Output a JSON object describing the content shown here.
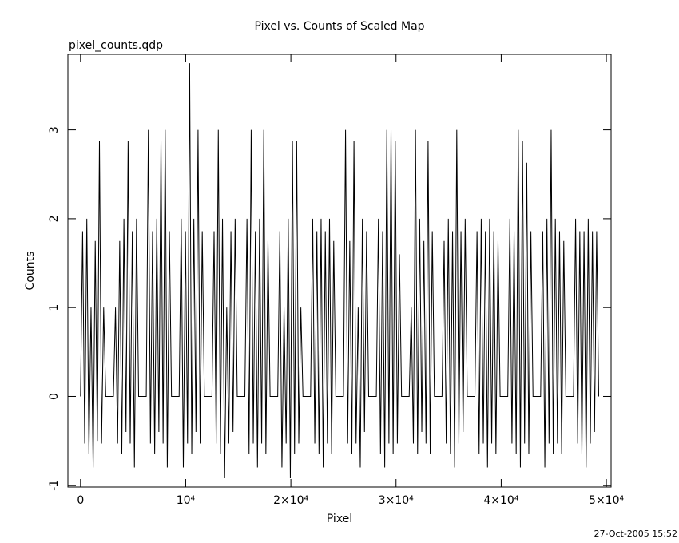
{
  "chart_data": {
    "type": "line",
    "title": "Pixel vs. Counts of Scaled Map",
    "subtitle": "pixel_counts.qdp",
    "x_label": "Pixel",
    "y_label": "Counts",
    "timestamp": "27-Oct-2005 15:52",
    "color": "#000000",
    "xlim": [
      -1200,
      50450
    ],
    "ylim": [
      -1.02,
      3.85
    ],
    "xticks": [
      0,
      {
        "value": 10000,
        "label": "10⁴"
      },
      {
        "value": 20000,
        "label": "2×10⁴"
      },
      {
        "value": 30000,
        "label": "3×10⁴"
      },
      {
        "value": 40000,
        "label": "4×10⁴"
      },
      {
        "value": 50000,
        "label": "5×10⁴"
      }
    ],
    "yticks": [
      -1,
      0,
      1,
      2,
      3
    ],
    "x": [
      0,
      200,
      400,
      600,
      800,
      1000,
      1200,
      1400,
      1600,
      1800,
      2000,
      2200,
      2400,
      3125,
      3325,
      3525,
      3725,
      3925,
      4125,
      4325,
      4525,
      4725,
      4925,
      5125,
      5325,
      5525,
      6250,
      6450,
      6650,
      6850,
      7050,
      7250,
      7450,
      7650,
      7850,
      8050,
      8250,
      8450,
      8650,
      9375,
      9575,
      9775,
      9975,
      10175,
      10375,
      10575,
      10775,
      10975,
      11175,
      11375,
      11575,
      11775,
      12500,
      12700,
      12900,
      13100,
      13300,
      13500,
      13700,
      13900,
      14100,
      14300,
      14500,
      14700,
      14900,
      15625,
      15825,
      16025,
      16225,
      16425,
      16625,
      16825,
      17025,
      17225,
      17425,
      17625,
      17825,
      18025,
      18750,
      18950,
      19150,
      19350,
      19550,
      19750,
      19950,
      20150,
      20350,
      20550,
      20750,
      20950,
      21150,
      21875,
      22075,
      22275,
      22475,
      22675,
      22875,
      23075,
      23275,
      23475,
      23675,
      23875,
      24075,
      24275,
      25000,
      25200,
      25400,
      25600,
      25800,
      26000,
      26200,
      26400,
      26600,
      26800,
      27000,
      27200,
      27400,
      28125,
      28325,
      28525,
      28725,
      28925,
      29125,
      29325,
      29525,
      29725,
      29925,
      30125,
      30325,
      30525,
      31250,
      31450,
      31650,
      31850,
      32050,
      32250,
      32450,
      32650,
      32850,
      33050,
      33250,
      33450,
      33650,
      34375,
      34575,
      34775,
      34975,
      35175,
      35375,
      35575,
      35775,
      35975,
      36175,
      36375,
      36575,
      36775,
      37500,
      37700,
      37900,
      38100,
      38300,
      38500,
      38700,
      38900,
      39100,
      39300,
      39500,
      39700,
      39900,
      40625,
      40825,
      41025,
      41225,
      41425,
      41625,
      41825,
      42025,
      42225,
      42425,
      42625,
      42825,
      43025,
      43750,
      43950,
      44150,
      44350,
      44550,
      44750,
      44950,
      45150,
      45350,
      45550,
      45750,
      45950,
      46150,
      46875,
      47075,
      47275,
      47475,
      47675,
      47875,
      48075,
      48275,
      48475,
      48675,
      48875,
      49075,
      49275
    ],
    "values": [
      0,
      1.86,
      -0.53,
      2,
      -0.65,
      1,
      -0.8,
      1.75,
      -0.5,
      2.88,
      -0.53,
      1,
      0,
      0,
      1,
      -0.53,
      1.75,
      -0.65,
      2,
      -0.4,
      2.88,
      -0.53,
      1.86,
      -0.8,
      2,
      0,
      0,
      3,
      -0.53,
      1.86,
      -0.65,
      2,
      -0.4,
      2.88,
      -0.53,
      3,
      -0.8,
      1.86,
      0,
      0,
      2,
      -0.8,
      1.86,
      -0.53,
      3.75,
      -0.65,
      2,
      -0.4,
      3,
      -0.53,
      1.86,
      0,
      0,
      1.86,
      -0.53,
      3,
      -0.65,
      2,
      -0.92,
      1,
      -0.53,
      1.86,
      -0.4,
      2,
      0,
      0,
      2,
      -0.65,
      3,
      -0.53,
      1.86,
      -0.8,
      2,
      -0.53,
      3,
      -0.65,
      1.75,
      0,
      0,
      1.86,
      -0.8,
      1,
      -0.53,
      2,
      -0.92,
      2.88,
      -0.65,
      2.88,
      -0.53,
      1,
      0,
      0,
      2,
      -0.53,
      1.86,
      -0.65,
      2,
      -0.8,
      1.86,
      -0.53,
      2,
      -0.65,
      1.75,
      0,
      0,
      3,
      -0.53,
      1.75,
      -0.65,
      2.88,
      -0.53,
      1,
      -0.8,
      2,
      -0.4,
      1.86,
      0,
      0,
      2,
      -0.65,
      1.86,
      -0.8,
      3,
      -0.53,
      3,
      -0.65,
      2.88,
      -0.53,
      1.6,
      0,
      0,
      1,
      -0.53,
      3,
      -0.65,
      2,
      -0.4,
      1.75,
      -0.53,
      2.88,
      -0.65,
      1.86,
      0,
      0,
      1.75,
      -0.53,
      2,
      -0.65,
      1.86,
      -0.8,
      3,
      -0.53,
      1.86,
      -0.4,
      2,
      0,
      0,
      1.86,
      -0.65,
      2,
      -0.53,
      1.86,
      -0.8,
      2,
      -0.53,
      1.86,
      -0.65,
      1.75,
      0,
      0,
      2,
      -0.53,
      1.86,
      -0.65,
      3,
      -0.8,
      2.88,
      -0.53,
      2.63,
      -0.65,
      1.86,
      0,
      0,
      1.86,
      -0.8,
      2,
      -0.53,
      3,
      -0.65,
      2,
      -0.53,
      1.86,
      -0.65,
      1.75,
      0,
      0,
      2,
      -0.53,
      1.86,
      -0.65,
      1.86,
      -0.8,
      2,
      -0.53,
      1.86,
      -0.4,
      1.86,
      0
    ]
  }
}
